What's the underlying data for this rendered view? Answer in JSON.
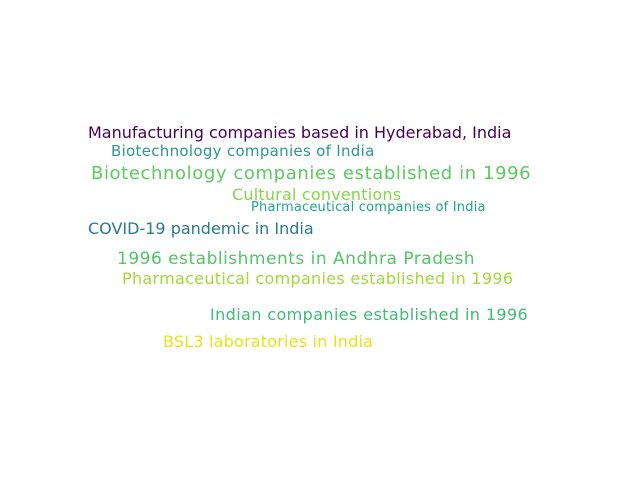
{
  "words": [
    {
      "text": "Manufacturing companies based in Hyderabad, India",
      "color": "#440154"
    },
    {
      "text": "Biotechnology companies of India",
      "color": "#2a9a8a"
    },
    {
      "text": "Biotechnology companies established in 1996",
      "color": "#5ec962"
    },
    {
      "text": "Cultural conventions",
      "color": "#86d549"
    },
    {
      "text": "Pharmaceutical companies of India",
      "color": "#21a685"
    },
    {
      "text": "COVID-19 pandemic in India",
      "color": "#2a788e"
    },
    {
      "text": "1996 establishments in Andhra Pradesh",
      "color": "#52c569"
    },
    {
      "text": "Pharmaceutical companies established in 1996",
      "color": "#a2da37"
    },
    {
      "text": "Indian companies established in 1996",
      "color": "#3dbc74"
    },
    {
      "text": "BSL3 laboratories in India",
      "color": "#e5e419"
    }
  ]
}
